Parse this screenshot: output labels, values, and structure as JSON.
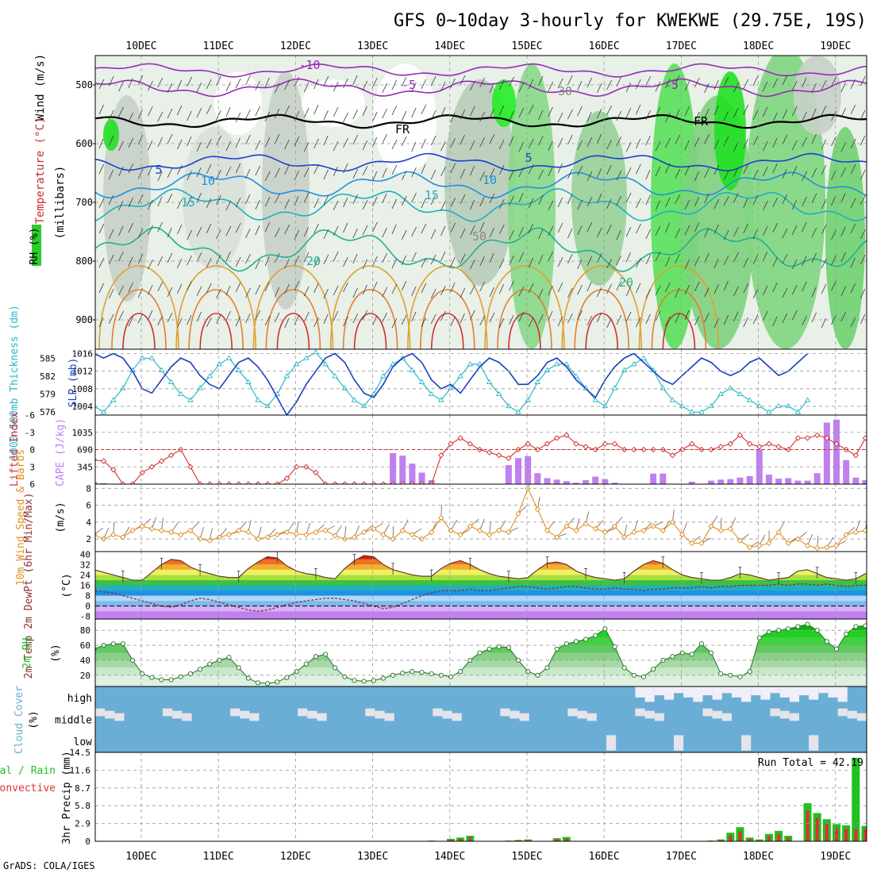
{
  "title": "GFS 0~10day 3-hourly for KWEKWE (29.75E, 19S)",
  "footer": "GrADS: COLA/IGES",
  "days": [
    "10DEC",
    "11DEC",
    "12DEC",
    "13DEC",
    "14DEC",
    "15DEC",
    "16DEC",
    "17DEC",
    "18DEC",
    "19DEC"
  ],
  "colors": {
    "temp_dark": "#e0a030",
    "warm": "#d02020",
    "slp": "#1a3fc0",
    "thick": "#28b8c8",
    "li": "#d03030",
    "cape": "#c080f0",
    "wind": "#e09020",
    "rh": "#20b030",
    "cloud": "#6aaed6",
    "precip_total": "#20c020",
    "precip_conv": "#e03030",
    "grid": "#999999"
  },
  "panels": {
    "upper": {
      "ylabel_parts": [
        "RH (%)",
        "Temperature (°C)",
        "Wind (m/s)"
      ],
      "ylabel2": "(millibars)",
      "yticks": [
        500,
        600,
        700,
        800,
        900
      ],
      "ylim": [
        450,
        950
      ],
      "contour_labels": [
        "-10",
        "-5",
        "-5",
        "FR",
        "FR",
        "5",
        "5",
        "10",
        "10",
        "15",
        "15",
        "20",
        "20",
        "30",
        "50"
      ]
    },
    "slp": {
      "ylabel_left": "1000-500mb Thickness (dm)",
      "ylabel_right": "SLP (mb)",
      "thick_ticks": [
        "585",
        "582",
        "579",
        "576"
      ],
      "slp_ticks": [
        "1016",
        "1012",
        "1008",
        "1004"
      ]
    },
    "li": {
      "ylabel_left": "Lifted Index",
      "ylabel_right": "CAPE (J/kg)",
      "li_ticks": [
        "-6",
        "-3",
        "0",
        "3",
        "6"
      ],
      "cape_ticks": [
        "1035",
        "690",
        "345"
      ]
    },
    "wind": {
      "ylabel": "10m Wind Speed & Barbs",
      "unit": "(m/s)",
      "yticks": [
        "8",
        "6",
        "4",
        "2"
      ]
    },
    "temp": {
      "ylabel": "2m Temp 2m DewPt (6hr Min/Max)",
      "unit": "(°C)",
      "yticks": [
        "40",
        "32",
        "24",
        "16",
        "8",
        "0",
        "-8"
      ]
    },
    "rh": {
      "ylabel": "2m RH",
      "unit": "(%)",
      "yticks": [
        "80",
        "60",
        "40",
        "20"
      ]
    },
    "cloud": {
      "ylabel": "Cloud Cover",
      "unit": "(%)",
      "levels": [
        "high",
        "middle",
        "low"
      ]
    },
    "precip": {
      "ylabel": "3hr Precip (mm)",
      "legend_total": "Total / Rain",
      "legend_conv": "Convective",
      "yticks": [
        "14.5",
        "11.6",
        "8.7",
        "5.8",
        "2.9",
        "0"
      ],
      "run_total_label": "Run Total = 42.19"
    }
  },
  "chart_data": [
    {
      "type": "line",
      "title": "SLP (mb)",
      "x_start": "10DEC 00Z",
      "x_step_hours": 3,
      "ylim": [
        1002,
        1017
      ],
      "values": [
        1009,
        1012,
        1015,
        1016,
        1015,
        1016,
        1015,
        1012,
        1008,
        1007,
        1010,
        1013,
        1015,
        1014,
        1011,
        1009,
        1008,
        1011,
        1014,
        1015,
        1013,
        1010,
        1006,
        1002,
        1005,
        1009,
        1012,
        1015,
        1016,
        1014,
        1010,
        1007,
        1006,
        1009,
        1013,
        1015,
        1016,
        1014,
        1010,
        1008,
        1009,
        1007,
        1010,
        1013,
        1015,
        1014,
        1012,
        1009,
        1009,
        1011,
        1014,
        1015,
        1013,
        1010,
        1008,
        1006,
        1010,
        1013,
        1015,
        1016,
        1014,
        1012,
        1010,
        1009,
        1011,
        1013,
        1015,
        1014,
        1012,
        1011,
        1012,
        1014,
        1015,
        1013,
        1011,
        1012,
        1014,
        1016
      ]
    },
    {
      "type": "line",
      "title": "1000-500mb Thickness (dm)",
      "x_start": "10DEC 00Z",
      "x_step_hours": 3,
      "ylim": [
        575.5,
        586.5
      ],
      "values": [
        581,
        580,
        578,
        577,
        576,
        578,
        580,
        583,
        585,
        585,
        583,
        581,
        579,
        578,
        580,
        582,
        584,
        585,
        583,
        581,
        578,
        577,
        579,
        582,
        584,
        585,
        586,
        584,
        582,
        580,
        578,
        577,
        579,
        582,
        584,
        585,
        583,
        581,
        579,
        578,
        580,
        582,
        584,
        584,
        581,
        579,
        577,
        576,
        578,
        581,
        583,
        584,
        584,
        582,
        580,
        578,
        577,
        580,
        583,
        584,
        585,
        583,
        580,
        578,
        577,
        576,
        576,
        577,
        579,
        580,
        579,
        578,
        577,
        576,
        577,
        577,
        576,
        578
      ]
    },
    {
      "type": "line",
      "title": "Lifted Index",
      "x_start": "10DEC 00Z",
      "x_step_hours": 3,
      "ylim": [
        6,
        -6
      ],
      "values": [
        1,
        1.5,
        1.2,
        1.8,
        2,
        3.5,
        6,
        6,
        4,
        3,
        2,
        1,
        0,
        3,
        6,
        6,
        6,
        6,
        6,
        6,
        6,
        6,
        6,
        5,
        3,
        3,
        4,
        6,
        6,
        6,
        6,
        6,
        6,
        6,
        6,
        6,
        6,
        6,
        6,
        1,
        -1,
        -2,
        -1,
        0,
        0.5,
        1,
        1.5,
        0,
        -1,
        0,
        -1,
        -2,
        -2.5,
        -1,
        -0.5,
        0,
        -1,
        -1,
        0,
        0,
        0,
        0,
        0,
        1,
        0,
        -1,
        0,
        0,
        -0.5,
        -1,
        -2.5,
        -1,
        -0.5,
        -1,
        -0.5,
        0,
        -2,
        -2,
        -2.5,
        -2,
        -1,
        0,
        1,
        -2
      ]
    },
    {
      "type": "bar",
      "title": "CAPE (J/kg)",
      "x_start": "10DEC 00Z",
      "x_step_hours": 3,
      "ylim": [
        0,
        1380
      ],
      "values": [
        50,
        0,
        20,
        40,
        20,
        0,
        0,
        0,
        0,
        0,
        0,
        0,
        0,
        0,
        0,
        0,
        0,
        0,
        0,
        0,
        0,
        0,
        0,
        0,
        0,
        0,
        0,
        0,
        0,
        0,
        0,
        0,
        0,
        0,
        620,
        570,
        410,
        230,
        80,
        0,
        0,
        0,
        0,
        0,
        0,
        0,
        380,
        520,
        560,
        220,
        120,
        90,
        60,
        30,
        80,
        150,
        100,
        30,
        0,
        0,
        0,
        210,
        210,
        0,
        0,
        50,
        0,
        70,
        90,
        100,
        130,
        160,
        700,
        190,
        110,
        120,
        70,
        70,
        220,
        1230,
        1290,
        480,
        130,
        80,
        0,
        1000
      ]
    },
    {
      "type": "line",
      "title": "10m Wind Speed (m/s)",
      "x_start": "10DEC 00Z",
      "x_step_hours": 3,
      "ylim": [
        0.5,
        8.5
      ],
      "values": [
        3.5,
        2.2,
        1.8,
        2.5,
        2.0,
        2.5,
        2.2,
        3.0,
        3.5,
        3.2,
        3.0,
        2.8,
        2.5,
        3.0,
        2.0,
        1.8,
        2.2,
        2.5,
        3.0,
        2.8,
        2.0,
        2.2,
        2.5,
        2.8,
        2.6,
        2.5,
        2.8,
        3.0,
        2.4,
        2.0,
        2.2,
        2.8,
        3.2,
        2.5,
        2.0,
        3.0,
        2.5,
        2.0,
        2.8,
        4.5,
        3.0,
        2.5,
        3.5,
        3.0,
        2.5,
        3.0,
        2.8,
        5.0,
        8.0,
        5.5,
        3.0,
        2.2,
        3.5,
        3.0,
        3.8,
        3.2,
        2.8,
        3.5,
        2.2,
        2.8,
        3.0,
        3.5,
        3.0,
        4.0,
        2.5,
        1.5,
        1.5,
        3.5,
        3.0,
        3.2,
        1.8,
        1.0,
        1.2,
        1.5,
        2.8,
        1.5,
        2.0,
        1.2,
        0.9,
        1.0,
        1.2,
        2.5,
        2.8,
        3.0,
        2.2,
        1.0,
        2.0,
        3.0,
        4.0
      ]
    },
    {
      "type": "area",
      "title": "2m Temp (°C)",
      "x_start": "10DEC 00Z",
      "x_step_hours": 3,
      "ylim": [
        -10,
        42
      ],
      "values": [
        35,
        33,
        30,
        28,
        26,
        24,
        22,
        20,
        20,
        26,
        32,
        36,
        35,
        30,
        27,
        25,
        23,
        22,
        22,
        29,
        34,
        38,
        37,
        31,
        27,
        25,
        24,
        22,
        21,
        29,
        35,
        39,
        38,
        32,
        28,
        26,
        24,
        23,
        23,
        29,
        33,
        35,
        32,
        28,
        25,
        23,
        22,
        21,
        22,
        28,
        33,
        34,
        32,
        27,
        24,
        22,
        21,
        20,
        21,
        27,
        32,
        35,
        33,
        28,
        24,
        22,
        21,
        20,
        20,
        22,
        25,
        24,
        22,
        20,
        21,
        22,
        27,
        28,
        25,
        22,
        21,
        20,
        21,
        25,
        26,
        24,
        22,
        21,
        20,
        22
      ]
    },
    {
      "type": "line",
      "title": "2m DewPt (°C)",
      "x_start": "10DEC 00Z",
      "x_step_hours": 3,
      "ylim": [
        -10,
        42
      ],
      "values": [
        6,
        9,
        12,
        12,
        11,
        10,
        8,
        6,
        4,
        2,
        0,
        -1,
        1,
        4,
        6,
        5,
        3,
        1,
        -1,
        -3,
        -4,
        -3,
        -1,
        1,
        3,
        4,
        5,
        6,
        6,
        5,
        4,
        2,
        0,
        -2,
        -1,
        2,
        5,
        8,
        10,
        12,
        12,
        12,
        13,
        12,
        12,
        13,
        14,
        15,
        15,
        14,
        13,
        14,
        15,
        15,
        14,
        13,
        13,
        14,
        13,
        13,
        12,
        13,
        13,
        14,
        14,
        14,
        15,
        14,
        15,
        15,
        16,
        16,
        16,
        16,
        17,
        16,
        17,
        17,
        16,
        17,
        16,
        15,
        16,
        16,
        17,
        16,
        16,
        15,
        16,
        16
      ]
    },
    {
      "type": "area",
      "title": "2m RH (%)",
      "x_start": "10DEC 00Z",
      "x_step_hours": 3,
      "ylim": [
        5,
        95
      ],
      "values": [
        15,
        20,
        40,
        55,
        60,
        62,
        62,
        40,
        22,
        17,
        14,
        14,
        18,
        22,
        28,
        35,
        40,
        44,
        30,
        16,
        10,
        9,
        11,
        17,
        25,
        35,
        45,
        48,
        30,
        18,
        13,
        12,
        13,
        16,
        20,
        23,
        25,
        24,
        22,
        20,
        18,
        25,
        40,
        50,
        55,
        58,
        57,
        40,
        25,
        20,
        30,
        55,
        62,
        65,
        68,
        73,
        82,
        58,
        30,
        20,
        18,
        28,
        40,
        45,
        50,
        48,
        62,
        50,
        22,
        20,
        18,
        25,
        70,
        78,
        80,
        82,
        85,
        88,
        80,
        65,
        55,
        75,
        85,
        86,
        87,
        88,
        84,
        82,
        57,
        70,
        85,
        87,
        88,
        86,
        88,
        86
      ]
    },
    {
      "type": "bar",
      "title": "3hr Precip Total (mm)",
      "x_start": "10DEC 00Z",
      "x_step_hours": 3,
      "ylim": [
        0,
        14.5
      ],
      "values": [
        0,
        0,
        0,
        0,
        0,
        0,
        0,
        0,
        0,
        0,
        0,
        0,
        0,
        0,
        0,
        0,
        0,
        0,
        0,
        0,
        0,
        0,
        0,
        0,
        0,
        0,
        0,
        0,
        0,
        0,
        0,
        0,
        0,
        0,
        0,
        0,
        0,
        0,
        0.1,
        0,
        0.4,
        0.6,
        0.9,
        0,
        0,
        0,
        0.1,
        0.2,
        0.3,
        0,
        0,
        0.5,
        0.7,
        0,
        0,
        0,
        0,
        0,
        0,
        0,
        0,
        0,
        0,
        0,
        0,
        0,
        0,
        0.1,
        0.3,
        1.4,
        2.3,
        0.6,
        0.3,
        1.2,
        1.7,
        0.9,
        0,
        6.2,
        4.6,
        3.6,
        2.8,
        2.6,
        13.6,
        2.5,
        0,
        0.2,
        0.9,
        0
      ]
    },
    {
      "type": "bar",
      "title": "3hr Precip Convective (mm)",
      "x_start": "10DEC 00Z",
      "x_step_hours": 3,
      "ylim": [
        0,
        14.5
      ],
      "values": [
        0,
        0,
        0,
        0,
        0,
        0,
        0,
        0,
        0,
        0,
        0,
        0,
        0,
        0,
        0,
        0,
        0,
        0,
        0,
        0,
        0,
        0,
        0,
        0,
        0,
        0,
        0,
        0,
        0,
        0,
        0,
        0,
        0,
        0,
        0,
        0,
        0,
        0,
        0.1,
        0,
        0.3,
        0.4,
        0.7,
        0,
        0,
        0,
        0.1,
        0.2,
        0.2,
        0,
        0,
        0.4,
        0.5,
        0,
        0,
        0,
        0,
        0,
        0,
        0,
        0,
        0,
        0,
        0,
        0,
        0,
        0,
        0.1,
        0.2,
        1.0,
        1.6,
        0.4,
        0.2,
        0.8,
        1.2,
        0.6,
        0,
        5.0,
        3.8,
        3.0,
        2.2,
        2.0,
        2.0,
        2.0,
        0,
        0.1,
        0.7,
        0
      ]
    }
  ]
}
